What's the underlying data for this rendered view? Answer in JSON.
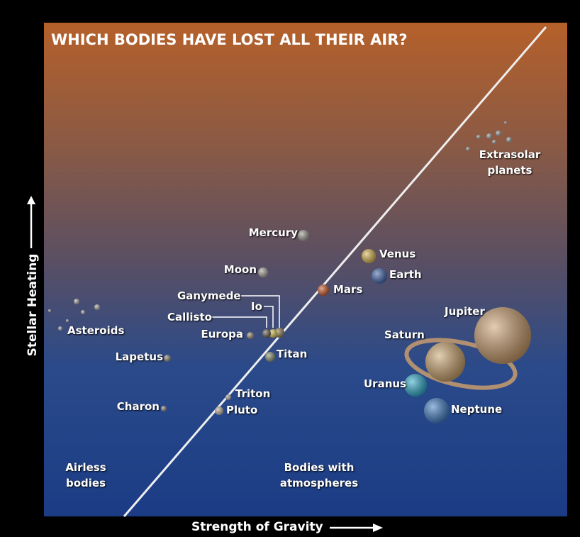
{
  "title": "WHICH BODIES HAVE LOST ALL THEIR AIR?",
  "axes": {
    "x": "Strength of Gravity",
    "y": "Stellar Heating"
  },
  "bodies": [
    {
      "label": "Mercury"
    },
    {
      "label": "Moon"
    },
    {
      "label": "Venus"
    },
    {
      "label": "Earth"
    },
    {
      "label": "Mars"
    },
    {
      "label": "Ganymede"
    },
    {
      "label": "Io"
    },
    {
      "label": "Callisto"
    },
    {
      "label": "Europa"
    },
    {
      "label": "Titan"
    },
    {
      "label": "Triton"
    },
    {
      "label": "Pluto"
    },
    {
      "label": "Lapetus"
    },
    {
      "label": "Charon"
    },
    {
      "label": "Asteroids"
    },
    {
      "label": "Jupiter"
    },
    {
      "label": "Saturn"
    },
    {
      "label": "Uranus"
    },
    {
      "label": "Neptune"
    },
    {
      "label": "Extrasolar planets"
    }
  ],
  "regions": [
    {
      "label": "Airless bodies"
    },
    {
      "label": "Bodies with atmospheres"
    }
  ]
}
